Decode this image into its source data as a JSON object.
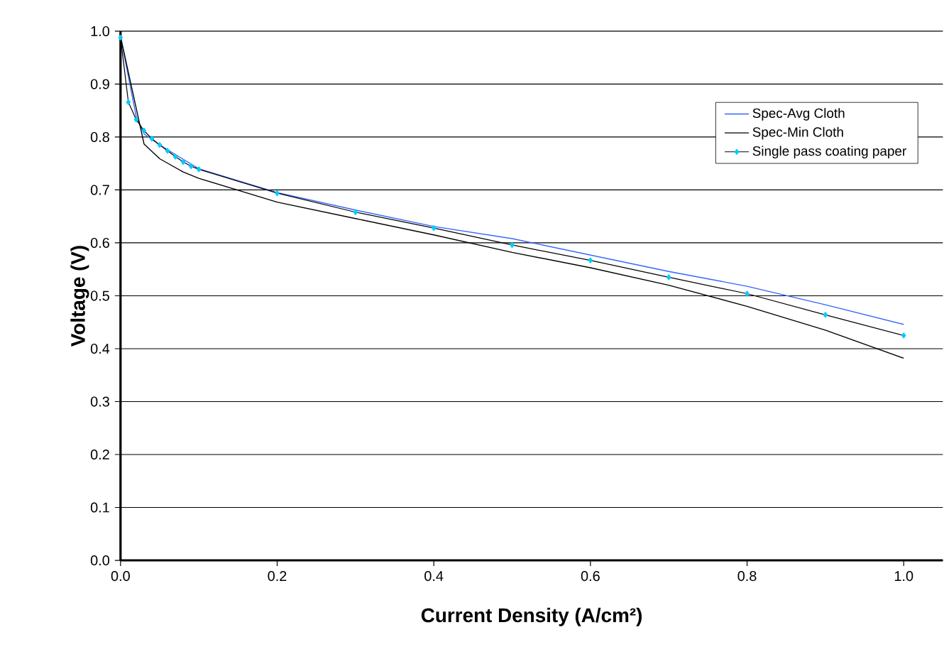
{
  "chart_data": {
    "type": "line",
    "xlabel": "Current Density (A/cm²)",
    "ylabel": "Voltage (V)",
    "xlim": [
      0,
      1.05
    ],
    "ylim": [
      0,
      1.0
    ],
    "xticks": [
      {
        "value": 0,
        "label": "0.0"
      },
      {
        "value": 0.2,
        "label": "0.2"
      },
      {
        "value": 0.4,
        "label": "0.4"
      },
      {
        "value": 0.6,
        "label": "0.6"
      },
      {
        "value": 0.8,
        "label": "0.8"
      },
      {
        "value": 1.0,
        "label": "1.0"
      }
    ],
    "yticks": [
      {
        "value": 0,
        "label": "0.0"
      },
      {
        "value": 0.1,
        "label": "0.1"
      },
      {
        "value": 0.2,
        "label": "0.2"
      },
      {
        "value": 0.3,
        "label": "0.3"
      },
      {
        "value": 0.4,
        "label": "0.4"
      },
      {
        "value": 0.5,
        "label": "0.5"
      },
      {
        "value": 0.6,
        "label": "0.6"
      },
      {
        "value": 0.7,
        "label": "0.7"
      },
      {
        "value": 0.8,
        "label": "0.8"
      },
      {
        "value": 0.9,
        "label": "0.9"
      },
      {
        "value": 1.0,
        "label": "1.0"
      }
    ],
    "grid": "y",
    "legend": "top right",
    "series": [
      {
        "name": "Spec-Avg Cloth",
        "color": "#3366ff",
        "marker": "none",
        "x": [
          0,
          0.02,
          0.03,
          0.05,
          0.1,
          0.2,
          0.3,
          0.4,
          0.5,
          0.6,
          0.7,
          0.8,
          0.9,
          1.0
        ],
        "values": [
          0.99,
          0.839,
          0.806,
          0.785,
          0.74,
          0.695,
          0.662,
          0.631,
          0.608,
          0.577,
          0.546,
          0.518,
          0.483,
          0.446
        ]
      },
      {
        "name": "Spec-Min Cloth",
        "color": "#000000",
        "marker": "none",
        "x": [
          0,
          0.03,
          0.05,
          0.08,
          0.1,
          0.2,
          0.3,
          0.4,
          0.5,
          0.6,
          0.7,
          0.8,
          0.9,
          1.0
        ],
        "values": [
          0.99,
          0.787,
          0.759,
          0.734,
          0.722,
          0.677,
          0.646,
          0.615,
          0.582,
          0.553,
          0.52,
          0.48,
          0.435,
          0.382
        ]
      },
      {
        "name": "Single pass coating paper",
        "color": "#00ccff",
        "marker": "diamond",
        "x": [
          0,
          0.01,
          0.02,
          0.03,
          0.04,
          0.05,
          0.06,
          0.07,
          0.08,
          0.09,
          0.1,
          0.2,
          0.3,
          0.4,
          0.5,
          0.6,
          0.7,
          0.8,
          0.9,
          1.0
        ],
        "values": [
          0.988,
          0.866,
          0.833,
          0.812,
          0.797,
          0.785,
          0.774,
          0.763,
          0.753,
          0.745,
          0.739,
          0.694,
          0.658,
          0.628,
          0.596,
          0.567,
          0.535,
          0.504,
          0.464,
          0.425
        ]
      }
    ]
  }
}
